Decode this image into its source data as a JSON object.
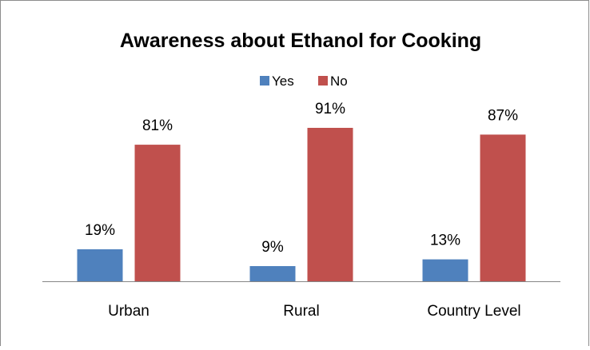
{
  "chart_data": {
    "type": "bar",
    "title": "Awareness about Ethanol for Cooking",
    "categories": [
      "Urban",
      "Rural",
      "Country Level"
    ],
    "series": [
      {
        "name": "Yes",
        "values": [
          19,
          9,
          13
        ],
        "labels": [
          "19%",
          "9%",
          "13%"
        ],
        "color": "#4F81BD"
      },
      {
        "name": "No",
        "values": [
          81,
          91,
          87
        ],
        "labels": [
          "81%",
          "91%",
          "87%"
        ],
        "color": "#C0504D"
      }
    ],
    "ylim": [
      0,
      100
    ],
    "grid": false,
    "legend_position": "top"
  }
}
